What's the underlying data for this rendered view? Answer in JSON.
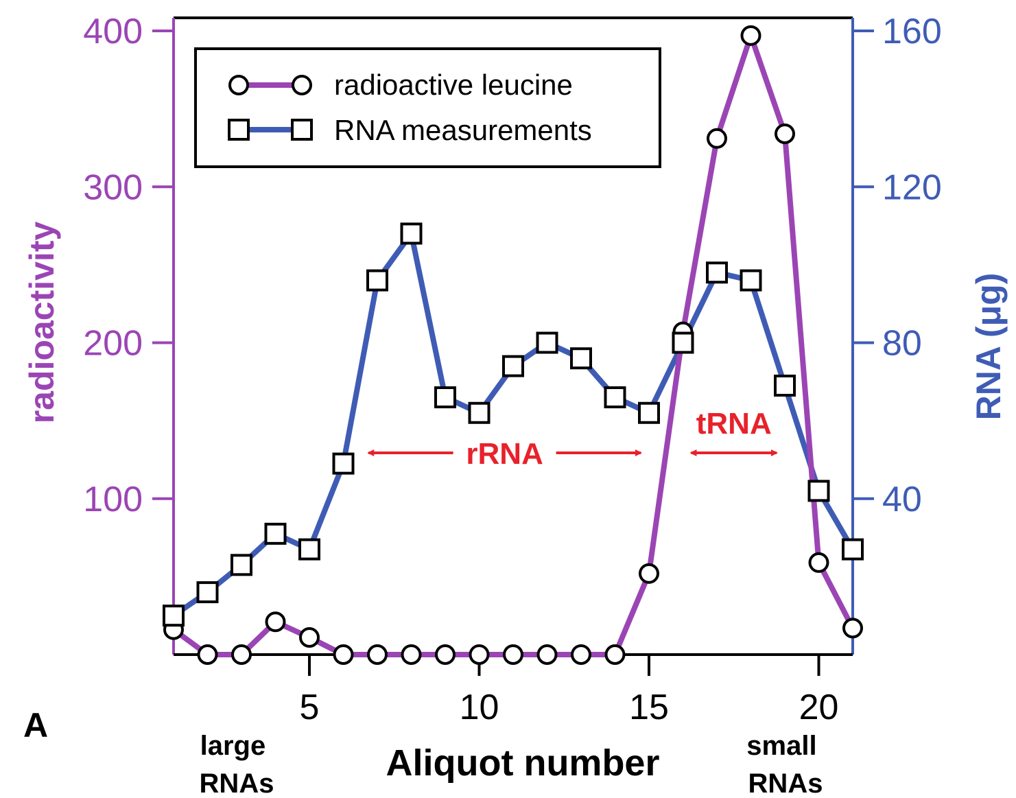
{
  "panel_label": "A",
  "colors": {
    "radioactivity": "#9b45b5",
    "rna": "#3f5cb5",
    "annotation": "#e8212b",
    "axis": "#000000"
  },
  "chart_data": {
    "type": "line",
    "xlabel": "Aliquot number",
    "ylabel_left": "radioactivity",
    "ylabel_right": "RNA (μg)",
    "xlim": [
      1,
      21
    ],
    "ylim_left": [
      0,
      400
    ],
    "ylim_right": [
      0,
      160
    ],
    "x_ticks": [
      5,
      10,
      15,
      20
    ],
    "y_ticks_left": [
      100,
      200,
      300,
      400
    ],
    "y_ticks_right": [
      40,
      80,
      120,
      160
    ],
    "grid": false,
    "legend_position": "top-left",
    "series": [
      {
        "name": "radioactive leucine",
        "axis": "left",
        "marker": "circle",
        "x": [
          1,
          2,
          3,
          4,
          5,
          6,
          7,
          8,
          9,
          10,
          11,
          12,
          13,
          14,
          15,
          16,
          17,
          18,
          19,
          20,
          21
        ],
        "values": [
          16,
          0,
          0,
          21,
          11,
          0,
          0,
          0,
          0,
          0,
          0,
          0,
          0,
          0,
          52,
          207,
          331,
          397,
          334,
          59,
          17
        ]
      },
      {
        "name": "RNA measurements",
        "axis": "right",
        "marker": "square",
        "x": [
          1,
          2,
          3,
          4,
          5,
          6,
          7,
          8,
          9,
          10,
          11,
          12,
          13,
          14,
          15,
          16,
          17,
          18,
          19,
          20,
          21
        ],
        "values": [
          10,
          16,
          23,
          31,
          27,
          49,
          96,
          108,
          66,
          62,
          74,
          80,
          76,
          66,
          62,
          80,
          98,
          96,
          69,
          42,
          27
        ]
      }
    ],
    "annotations": [
      {
        "text": "rRNA",
        "x_from": 6.5,
        "x_to": 15
      },
      {
        "text": "tRNA",
        "x_from": 16,
        "x_to": 19
      }
    ],
    "x_notes": {
      "left": "large\nRNAs",
      "right": "small\nRNAs"
    }
  }
}
